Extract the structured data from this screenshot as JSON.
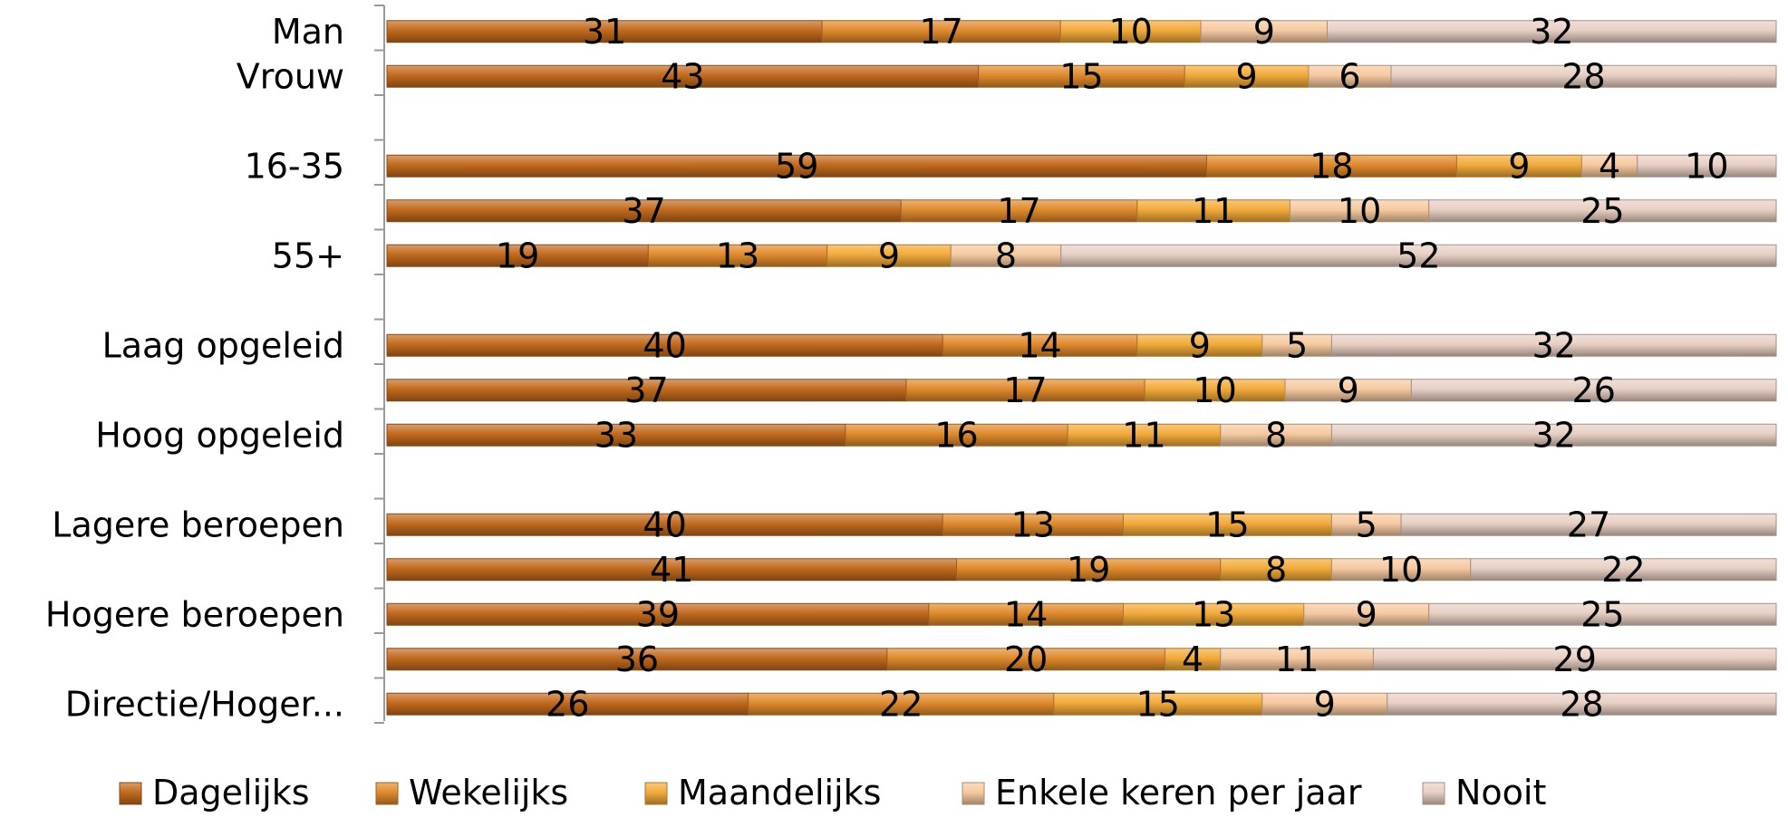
{
  "chart_data": {
    "type": "bar",
    "orientation": "horizontal",
    "stacked": "100%",
    "rows": [
      {
        "label": "Man",
        "values": [
          31,
          17,
          10,
          9,
          32
        ]
      },
      {
        "label": "Vrouw",
        "values": [
          43,
          15,
          9,
          6,
          28
        ]
      },
      {
        "label": "",
        "values": null
      },
      {
        "label": "16-35",
        "values": [
          59,
          18,
          9,
          4,
          10
        ]
      },
      {
        "label": "",
        "values": [
          37,
          17,
          11,
          10,
          25
        ]
      },
      {
        "label": "55+",
        "values": [
          19,
          13,
          9,
          8,
          52
        ]
      },
      {
        "label": "",
        "values": null
      },
      {
        "label": "Laag opgeleid",
        "values": [
          40,
          14,
          9,
          5,
          32
        ]
      },
      {
        "label": "",
        "values": [
          37,
          17,
          10,
          9,
          26
        ]
      },
      {
        "label": "Hoog opgeleid",
        "values": [
          33,
          16,
          11,
          8,
          32
        ]
      },
      {
        "label": "",
        "values": null
      },
      {
        "label": "Lagere beroepen",
        "values": [
          40,
          13,
          15,
          5,
          27
        ]
      },
      {
        "label": "",
        "values": [
          41,
          19,
          8,
          10,
          22
        ]
      },
      {
        "label": "Hogere beroepen",
        "values": [
          39,
          14,
          13,
          9,
          25
        ]
      },
      {
        "label": "",
        "values": [
          36,
          20,
          4,
          11,
          29
        ]
      },
      {
        "label": "Directie/Hoger...",
        "values": [
          26,
          22,
          15,
          9,
          28
        ]
      }
    ],
    "series": [
      {
        "name": "Dagelijks",
        "color": "#c26a1e"
      },
      {
        "name": "Wekelijks",
        "color": "#e08a2c"
      },
      {
        "name": "Maandelijks",
        "color": "#f2aa3a"
      },
      {
        "name": "Enkele keren per jaar",
        "color": "#f6c9a0"
      },
      {
        "name": "Nooit",
        "color": "#e8cfc4"
      }
    ],
    "legend_position": "bottom",
    "grid": false
  }
}
